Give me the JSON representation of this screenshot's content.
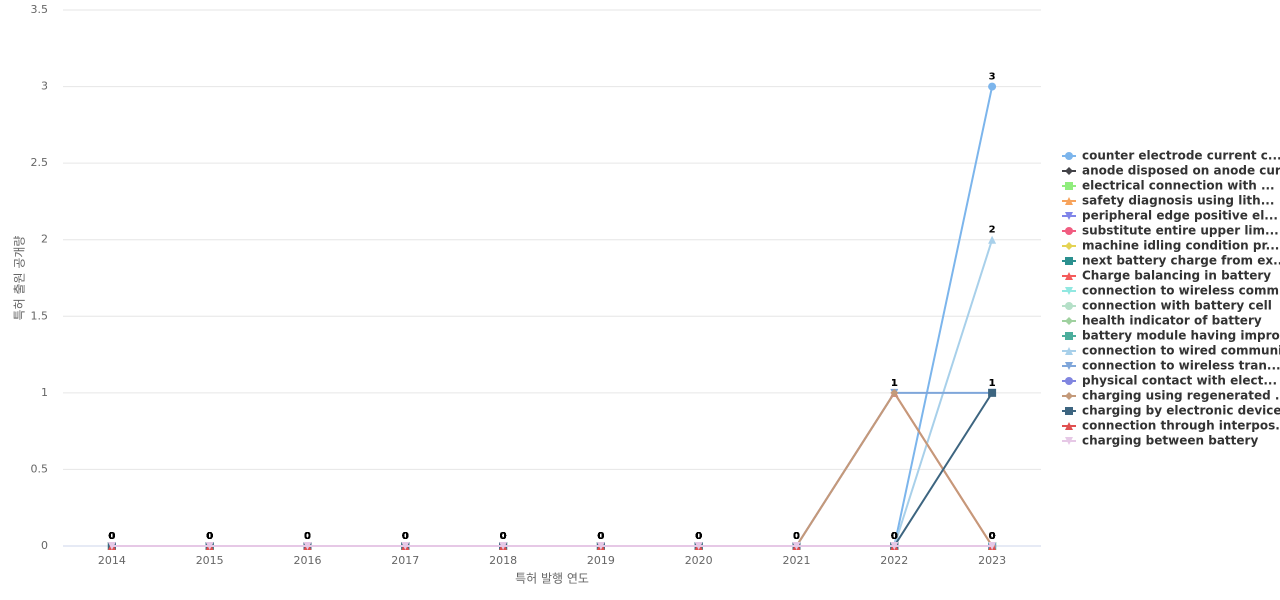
{
  "chart_data": {
    "type": "line",
    "x_label": "특허 발행 연도",
    "y_label": "특허 출원 공개량",
    "categories": [
      "2014",
      "2015",
      "2016",
      "2017",
      "2018",
      "2019",
      "2020",
      "2021",
      "2022",
      "2023"
    ],
    "ylim": [
      0,
      3.5
    ],
    "yticks": [
      0,
      0.5,
      1,
      1.5,
      2,
      2.5,
      3,
      3.5
    ],
    "grid": true,
    "series": [
      {
        "name": "counter electrode current c...",
        "color": "#7cb5ec",
        "marker": "circle",
        "values": [
          0,
          0,
          0,
          0,
          0,
          0,
          0,
          0,
          0,
          3
        ]
      },
      {
        "name": "anode disposed on anode cur...",
        "color": "#434348",
        "marker": "diamond",
        "values": [
          0,
          0,
          0,
          0,
          0,
          0,
          0,
          0,
          0,
          0
        ]
      },
      {
        "name": "electrical connection with ...",
        "color": "#90ed7d",
        "marker": "square",
        "values": [
          0,
          0,
          0,
          0,
          0,
          0,
          0,
          0,
          0,
          0
        ]
      },
      {
        "name": "safety diagnosis using lith...",
        "color": "#f7a35c",
        "marker": "triangle",
        "values": [
          0,
          0,
          0,
          0,
          0,
          0,
          0,
          0,
          0,
          0
        ]
      },
      {
        "name": "peripheral edge positive el...",
        "color": "#8085e9",
        "marker": "triangle-down",
        "values": [
          0,
          0,
          0,
          0,
          0,
          0,
          0,
          0,
          0,
          0
        ]
      },
      {
        "name": "substitute entire upper lim...",
        "color": "#f15c80",
        "marker": "circle",
        "values": [
          0,
          0,
          0,
          0,
          0,
          0,
          0,
          0,
          0,
          0
        ]
      },
      {
        "name": "machine idling condition pr...",
        "color": "#e4d354",
        "marker": "diamond",
        "values": [
          0,
          0,
          0,
          0,
          0,
          0,
          0,
          0,
          0,
          0
        ]
      },
      {
        "name": "next battery charge from ex...",
        "color": "#2b908f",
        "marker": "square",
        "values": [
          0,
          0,
          0,
          0,
          0,
          0,
          0,
          0,
          0,
          0
        ]
      },
      {
        "name": "Charge balancing in battery",
        "color": "#f45b5b",
        "marker": "triangle",
        "values": [
          0,
          0,
          0,
          0,
          0,
          0,
          0,
          0,
          1,
          0
        ]
      },
      {
        "name": "connection to wireless comm...",
        "color": "#91e8e1",
        "marker": "triangle-down",
        "values": [
          0,
          0,
          0,
          0,
          0,
          0,
          0,
          0,
          0,
          0
        ]
      },
      {
        "name": "connection with battery cell",
        "color": "#b5e0c8",
        "marker": "circle",
        "values": [
          0,
          0,
          0,
          0,
          0,
          0,
          0,
          0,
          0,
          0
        ]
      },
      {
        "name": "health indicator of battery",
        "color": "#9fd19f",
        "marker": "diamond",
        "values": [
          0,
          0,
          0,
          0,
          0,
          0,
          0,
          0,
          0,
          0
        ]
      },
      {
        "name": "battery module having impro...",
        "color": "#4cae9c",
        "marker": "square",
        "values": [
          0,
          0,
          0,
          0,
          0,
          0,
          0,
          0,
          0,
          0
        ]
      },
      {
        "name": "connection to wired communi...",
        "color": "#a8d0ea",
        "marker": "triangle",
        "values": [
          0,
          0,
          0,
          0,
          0,
          0,
          0,
          0,
          0,
          2
        ]
      },
      {
        "name": "connection to wireless tran...",
        "color": "#7fa6da",
        "marker": "triangle-down",
        "values": [
          0,
          0,
          0,
          0,
          0,
          0,
          0,
          0,
          1,
          1
        ]
      },
      {
        "name": "physical contact with elect...",
        "color": "#8085e0",
        "marker": "circle",
        "values": [
          0,
          0,
          0,
          0,
          0,
          0,
          0,
          0,
          0,
          0
        ]
      },
      {
        "name": "charging using regenerated ...",
        "color": "#c49a7a",
        "marker": "diamond",
        "values": [
          0,
          0,
          0,
          0,
          0,
          0,
          0,
          0,
          1,
          0
        ]
      },
      {
        "name": "charging by electronic device",
        "color": "#3d6580",
        "marker": "square",
        "values": [
          0,
          0,
          0,
          0,
          0,
          0,
          0,
          0,
          0,
          1
        ]
      },
      {
        "name": "connection through interpos...",
        "color": "#e05050",
        "marker": "triangle",
        "values": [
          0,
          0,
          0,
          0,
          0,
          0,
          0,
          0,
          0,
          0
        ]
      },
      {
        "name": "charging between battery",
        "color": "#e6c8e6",
        "marker": "triangle-down",
        "values": [
          0,
          0,
          0,
          0,
          0,
          0,
          0,
          0,
          0,
          0
        ]
      }
    ]
  }
}
